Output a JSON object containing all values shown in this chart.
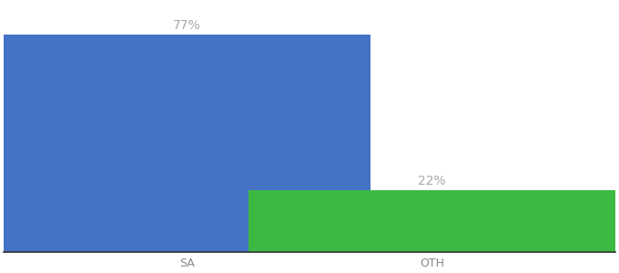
{
  "categories": [
    "SA",
    "OTH"
  ],
  "values": [
    77,
    22
  ],
  "bar_colors": [
    "#4472c4",
    "#3cb943"
  ],
  "label_texts": [
    "77%",
    "22%"
  ],
  "bar_width": 0.6,
  "bar_positions": [
    0.3,
    0.7
  ],
  "xlim": [
    0.0,
    1.0
  ],
  "ylim": [
    0,
    88
  ],
  "background_color": "#ffffff",
  "label_fontsize": 10,
  "tick_fontsize": 9,
  "label_color": "#aaaaaa"
}
